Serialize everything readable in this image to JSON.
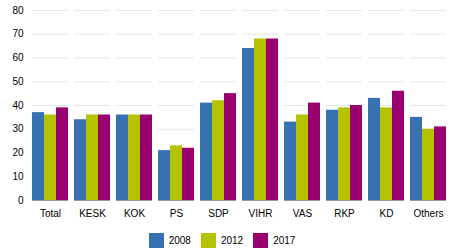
{
  "chart_data": {
    "type": "bar",
    "categories": [
      "Total",
      "KESK",
      "KOK",
      "PS",
      "SDP",
      "VIHR",
      "VAS",
      "RKP",
      "KD",
      "Others"
    ],
    "series": [
      {
        "name": "2008",
        "color": "#3771b0",
        "values": [
          37,
          34,
          36,
          21,
          41,
          64,
          33,
          38,
          43,
          35
        ]
      },
      {
        "name": "2012",
        "color": "#b5c200",
        "values": [
          36,
          36,
          36,
          23,
          42,
          68,
          36,
          39,
          39,
          30
        ]
      },
      {
        "name": "2017",
        "color": "#980070",
        "values": [
          39,
          36,
          36,
          22,
          45,
          68,
          41,
          40,
          46,
          31
        ]
      }
    ],
    "ylim": [
      0,
      80
    ],
    "yticks": [
      0,
      10,
      20,
      30,
      40,
      50,
      60,
      70,
      80
    ],
    "grid": true,
    "legend": "bottom"
  }
}
